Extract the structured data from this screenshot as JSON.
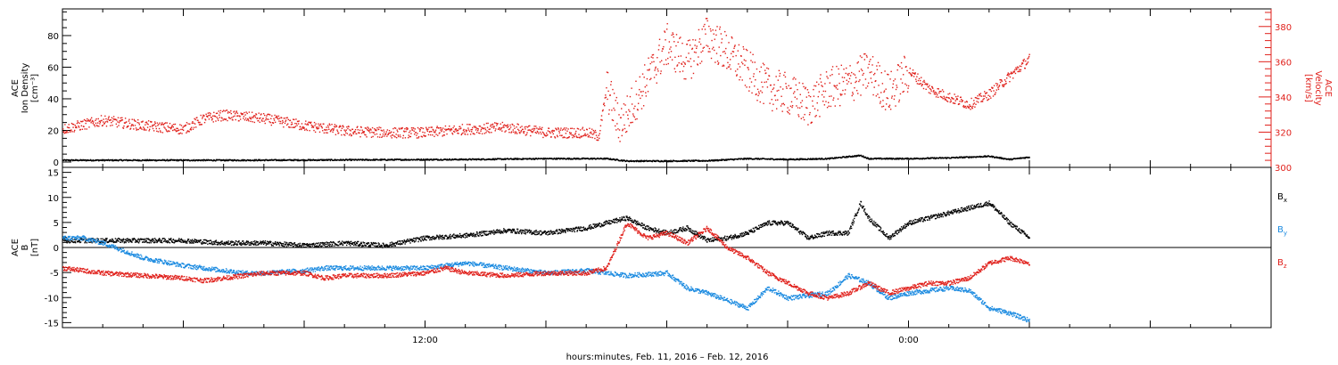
{
  "chart_data": {
    "type": "scatter",
    "xlabel": "hours:minutes, Feb. 11, 2016 – Feb. 12, 2016",
    "x_unit": "hours after 2016-02-11 00:00",
    "xlim": [
      3,
      33
    ],
    "x_ticks": [
      {
        "label": "12:00",
        "value": 12
      },
      {
        "label": "0:00",
        "value": 24
      }
    ],
    "colors": {
      "black": "#000000",
      "red": "#e0201b",
      "blue": "#1a8ae0"
    },
    "panels": [
      {
        "ylabel_lines": [
          "ACE",
          "Ion Density",
          "[cm⁻³]"
        ],
        "ylim": [
          0,
          98
        ],
        "y_ticks": [
          0,
          20,
          40,
          60,
          80
        ],
        "right_axis": {
          "ylabel_lines": [
            "ACE",
            "Velocity",
            "[km/s]"
          ],
          "ylim": [
            300,
            390
          ],
          "ticks": [
            300,
            320,
            340,
            360,
            380
          ],
          "color": "#e0201b"
        },
        "series": [
          {
            "axis": "left",
            "color": "black",
            "x": [
              3.0,
              5.0,
              7.0,
              9.0,
              11.0,
              13.0,
              15.0,
              16.5,
              17.0,
              18.0,
              19.0,
              20.0,
              21.0,
              22.0,
              22.8,
              23.0,
              24.0,
              25.0,
              26.0,
              26.5,
              27.0
            ],
            "y": [
              1.5,
              1.5,
              1.5,
              1.6,
              1.8,
              2.0,
              2.5,
              2.5,
              1.0,
              1.0,
              1.2,
              2.5,
              2.0,
              2.5,
              4.5,
              2.5,
              2.5,
              3.0,
              4.0,
              2.0,
              3.5
            ]
          },
          {
            "axis": "right",
            "color": "red",
            "x": [
              3.0,
              4.0,
              5.0,
              6.0,
              6.5,
              7.0,
              8.0,
              9.0,
              10.0,
              11.0,
              12.0,
              13.0,
              14.0,
              15.0,
              16.0,
              16.3,
              16.5,
              16.8,
              17.0,
              17.5,
              18.0,
              18.5,
              19.0,
              19.5,
              20.0,
              20.5,
              21.0,
              21.5,
              22.0,
              22.5,
              23.0,
              23.5,
              24.0,
              24.5,
              25.0,
              25.5,
              26.0,
              26.5,
              27.0
            ],
            "y": [
              322,
              327,
              324,
              322,
              328,
              330,
              328,
              324,
              321,
              320,
              320,
              322,
              323,
              320,
              320,
              318,
              345,
              325,
              330,
              350,
              370,
              360,
              375,
              365,
              355,
              345,
              342,
              335,
              345,
              348,
              355,
              342,
              355,
              345,
              340,
              336,
              342,
              352,
              362
            ]
          }
        ]
      },
      {
        "ylabel_lines": [
          "ACE",
          "B",
          "[nT]"
        ],
        "ylim": [
          -16,
          16
        ],
        "y_ticks": [
          -15,
          -10,
          -5,
          0,
          5,
          10,
          15
        ],
        "zero_line": true,
        "legend": [
          {
            "label": "Bx",
            "color": "black"
          },
          {
            "label": "By",
            "color": "blue"
          },
          {
            "label": "Bz",
            "color": "red"
          }
        ],
        "series": [
          {
            "name": "Bx",
            "color": "black",
            "x": [
              3.0,
              4.0,
              5.0,
              6.0,
              7.0,
              8.0,
              9.0,
              10.0,
              11.0,
              12.0,
              13.0,
              14.0,
              15.0,
              16.0,
              17.0,
              17.5,
              18.0,
              18.5,
              19.0,
              19.5,
              20.0,
              20.5,
              21.0,
              21.5,
              22.0,
              22.5,
              22.8,
              23.0,
              23.5,
              24.0,
              24.5,
              25.0,
              25.5,
              26.0,
              26.5,
              27.0
            ],
            "y": [
              1.5,
              1.5,
              1.5,
              1.5,
              1.0,
              1.0,
              0.5,
              1.0,
              0.5,
              2.0,
              2.5,
              3.5,
              3.0,
              4.0,
              6.0,
              4.0,
              3.0,
              4.0,
              1.5,
              2.0,
              3.0,
              5.0,
              5.0,
              2.0,
              3.0,
              3.0,
              9.0,
              6.0,
              2.0,
              5.0,
              6.0,
              7.0,
              8.0,
              9.0,
              5.0,
              2.0
            ]
          },
          {
            "name": "By",
            "color": "blue",
            "x": [
              3.0,
              3.5,
              4.0,
              4.5,
              5.0,
              6.0,
              7.0,
              7.5,
              8.0,
              9.0,
              9.5,
              10.0,
              11.0,
              12.0,
              13.0,
              14.0,
              15.0,
              16.0,
              17.0,
              18.0,
              18.5,
              19.0,
              20.0,
              20.5,
              21.0,
              22.0,
              22.5,
              23.0,
              23.5,
              24.0,
              25.0,
              25.5,
              26.0,
              26.5,
              27.0
            ],
            "y": [
              2.0,
              2.0,
              1.0,
              -0.5,
              -2.0,
              -3.5,
              -4.5,
              -5.0,
              -5.0,
              -4.5,
              -4.0,
              -4.0,
              -4.0,
              -4.0,
              -3.0,
              -4.0,
              -5.0,
              -4.5,
              -5.5,
              -5.0,
              -8.0,
              -9.0,
              -12.0,
              -8.0,
              -10.0,
              -9.0,
              -5.5,
              -7.0,
              -10.0,
              -9.0,
              -8.0,
              -8.5,
              -12.0,
              -13.0,
              -14.5
            ]
          },
          {
            "name": "Bz",
            "color": "red",
            "x": [
              3.0,
              4.0,
              5.0,
              6.0,
              6.5,
              7.0,
              8.0,
              9.0,
              9.5,
              10.0,
              11.0,
              12.0,
              12.5,
              13.0,
              14.0,
              15.0,
              16.0,
              16.5,
              17.0,
              17.5,
              18.0,
              18.5,
              19.0,
              19.5,
              20.0,
              20.5,
              21.0,
              21.5,
              22.0,
              22.5,
              23.0,
              23.5,
              24.0,
              24.5,
              25.0,
              25.5,
              26.0,
              26.5,
              27.0
            ],
            "y": [
              -4.0,
              -5.0,
              -5.5,
              -6.0,
              -6.5,
              -6.0,
              -5.0,
              -5.0,
              -6.0,
              -5.5,
              -5.5,
              -5.0,
              -4.0,
              -5.0,
              -5.5,
              -5.0,
              -5.0,
              -4.0,
              5.0,
              2.0,
              3.0,
              1.0,
              4.0,
              0.0,
              -2.0,
              -5.0,
              -7.0,
              -9.0,
              -10.0,
              -9.0,
              -7.0,
              -9.0,
              -8.0,
              -7.0,
              -7.0,
              -6.0,
              -3.0,
              -2.0,
              -3.0
            ]
          }
        ]
      }
    ]
  }
}
